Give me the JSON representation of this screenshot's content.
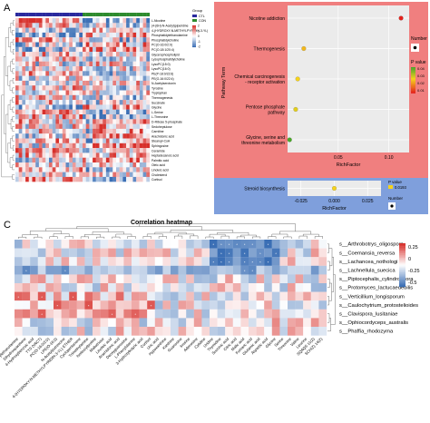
{
  "panels": {
    "a": {
      "letter": "A"
    },
    "b": {
      "letter": "B"
    },
    "c": {
      "letter": "C"
    }
  },
  "colors": {
    "group_ctl": "#2a2a9e",
    "group_con": "#2e8b2e",
    "heat_low": "#3b6fb5",
    "heat_mid": "#ffffff",
    "heat_high": "#d7302b",
    "panel_b_top_bg": "#f07f7f",
    "panel_b_bottom_bg": "#7f9fdc",
    "pval_high": "#e4211b",
    "pval_mid": "#f6d31b",
    "pval_low": "#2aa02a"
  },
  "panel_a": {
    "legend_title": "Group",
    "groups": [
      "CTL",
      "CON"
    ],
    "scale_ticks": [
      "2",
      "1",
      "0",
      "-1",
      "-2"
    ],
    "n_rows": 34,
    "n_cols": 40,
    "n_ctl_cols": 20,
    "row_labels": [
      "L-Nicotine",
      "(4-(6H)-N-Acetyl)piperidine",
      "4-(HYDROXY-N-METHYLPYRIDIN-3-YL)",
      "Phosphatidylethanolamine",
      "Phosphatidylcholine",
      "PC(O-16:0/2:0)",
      "PC(O-18:1/20:4)",
      "Glycerophospholipid",
      "Lysophosphatidylcholine",
      "LysoPC(15:0)",
      "LysoPC(16:0)",
      "PE(P-18:0/22:6)",
      "PE(O-16:0/22:4)",
      "N-Acetylserotonin",
      "Tyrosine",
      "Tryptophan",
      "Thermogenesis",
      "Succinate",
      "Glycine",
      "L-Serine",
      "L-Threonine",
      "D-Ribose 5-phosphate",
      "Sedoheptulose",
      "Carnitine",
      "Arachidonic acid",
      "Stearoyl-CoA",
      "Sphingosine",
      "Ceramide",
      "Heptadecanoic acid",
      "Palmitic acid",
      "Oleic acid",
      "Linoleic acid",
      "Cholesterol",
      "Cortisol"
    ]
  },
  "panel_b": {
    "top": {
      "ylabel": "Pathway Term",
      "xlabel": "RichFactor",
      "legend_number": "Number",
      "legend_pvalue": "P value",
      "pval_ticks": [
        "0.04",
        "0.03",
        "0.02",
        "0.01"
      ]
    },
    "bottom": {
      "xlabel": "RichFactor",
      "legend_number": "Number",
      "legend_pvalue": "P value",
      "pval_value": "0.0193"
    }
  },
  "chart_data": [
    {
      "type": "scatter",
      "title": "",
      "xlabel": "RichFactor",
      "ylabel": "Pathway Term",
      "xlim": [
        0,
        0.12
      ],
      "x_ticks": [
        0.05,
        0.1
      ],
      "x_tick_labels": [
        "0.05",
        "0.10"
      ],
      "categories": [
        "Nicotine addiction",
        "Thermogenesis",
        "Chemical carcinogenesis - receptor activation",
        "Pentose phosphate pathway",
        "Glycine, serine and threonine metabolism"
      ],
      "x": [
        0.112,
        0.016,
        0.01,
        0.008,
        0.002
      ],
      "p_value": [
        0.008,
        0.025,
        0.028,
        0.03,
        0.045
      ],
      "number": [
        1,
        1,
        1,
        1,
        1
      ]
    },
    {
      "type": "scatter",
      "title": "",
      "xlabel": "RichFactor",
      "ylabel": "",
      "xlim": [
        -0.035,
        0.035
      ],
      "x_ticks": [
        -0.025,
        0.0,
        0.025
      ],
      "x_tick_labels": [
        "-0.025",
        "0.000",
        "0.025"
      ],
      "categories": [
        "Steroid biosynthesis"
      ],
      "x": [
        0.0
      ],
      "p_value": [
        0.0193
      ],
      "number": [
        1
      ]
    },
    {
      "type": "heatmap",
      "title": "Correlation heatmap",
      "rows": [
        "s__Arthrobotrys_oligospora",
        "s__Coemansia_reversa",
        "s__Lachancea_nothologi",
        "s__Lachnellula_suecica",
        "s__Piptocephalis_cylindrospora",
        "s__Protomyces_lactucaedebilis",
        "s__Verticillium_longisporum",
        "s__Caulochytrium_protostelioides",
        "s__Clavispora_lusitaniae",
        "s__Ophiocordyceps_australis",
        "s__Phaffia_rhodozyma"
      ],
      "n_cols": 40,
      "scale_ticks": [
        0.25,
        0,
        -0.25,
        -0.5
      ],
      "scale_tick_labels": [
        "0.25",
        "0",
        "-0.25",
        "-0.5"
      ],
      "col_labels": [
        "Phosphatidylethanolamine",
        "Dihydroxyacetone",
        "4-Hydroxybenzoic acid",
        "TTS (VACT)",
        "PC(O-16:0/2:0)",
        "LPE(O-16:0)",
        "N-Acetylputrescine",
        "4-(HYDROXY-N-METHYLPYRIDIN-3-YL) ETHER",
        "Cyclopentanone",
        "Trimethylamine",
        "Isoleucylproline",
        "Maltotriose",
        "Linoleic acid",
        "Arachidonic acid",
        "Deoxyguanosine",
        "L-Phenylalanine",
        "3-Hydroxybutyric acid",
        "Cortisol",
        "Uric acid",
        "Hypoxanthine",
        "Xanthine",
        "Guanosine",
        "Inosine",
        "Adenosine",
        "Cytidine",
        "Uridine",
        "Thymidine",
        "Succinic acid",
        "Citric acid",
        "Malic acid",
        "Fumaric acid",
        "Glutamic acid",
        "Aspartic acid",
        "Glycine",
        "Serine",
        "Threonine",
        "Valine",
        "Leucine",
        "SQAQS 11(Z)",
        "SCH(Z) 14(Z)"
      ]
    }
  ]
}
